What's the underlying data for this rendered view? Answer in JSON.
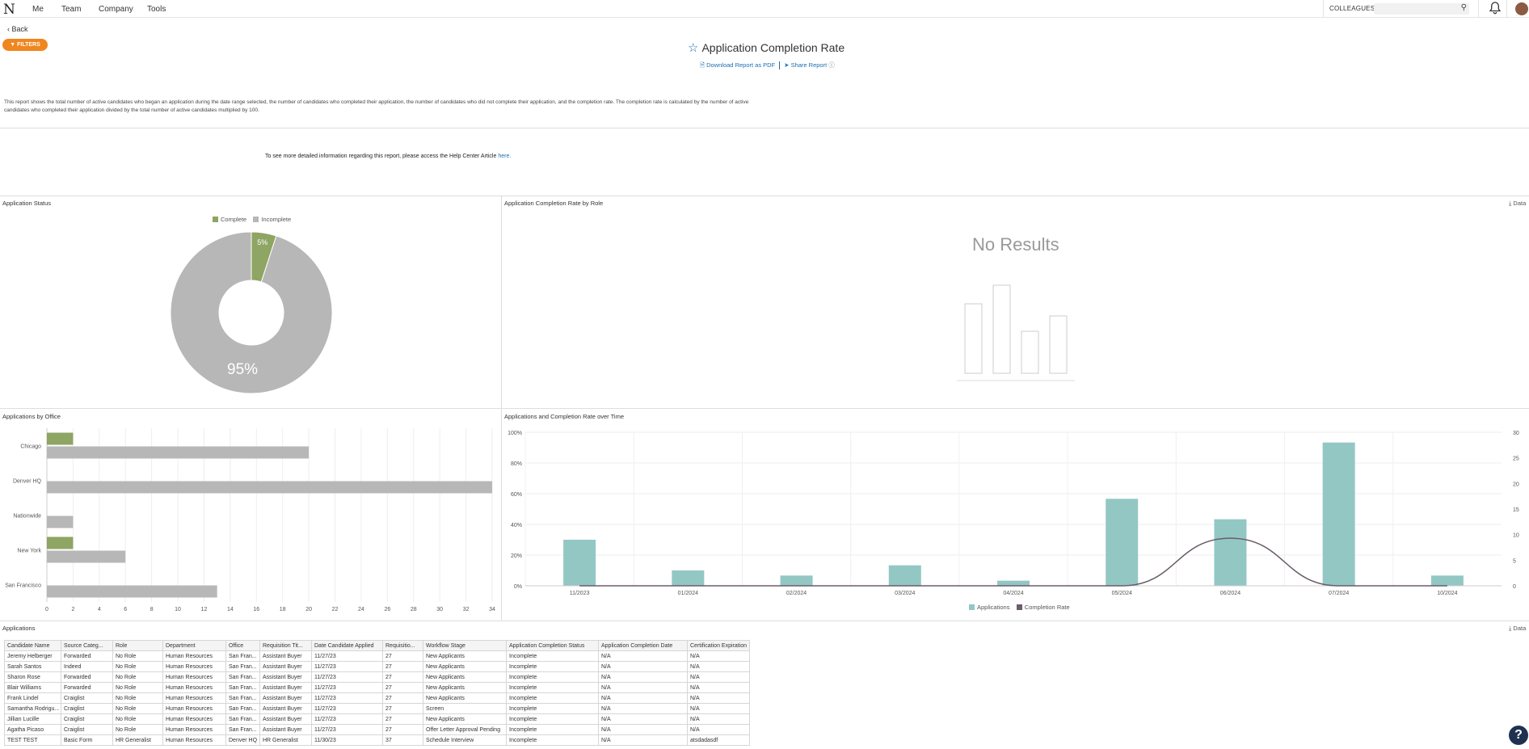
{
  "nav": {
    "logo": "N",
    "items": [
      "Me",
      "Team",
      "Company",
      "Tools"
    ],
    "colleagues_label": "COLLEAGUES ▾",
    "search_placeholder": ""
  },
  "back_label": "Back",
  "filters_label": "FILTERS",
  "page_title": "Application Completion Rate",
  "download_label": "Download Report as PDF",
  "share_label": "Share Report",
  "description": "This report shows the total number of active candidates who began an application during the date range selected, the number of candidates who completed their application, the number of candidates who did not complete their application, and the completion rate. The completion rate is calculated by the number of active candidates who completed their application divided by the total number of active candidates multiplied by 100.",
  "help_text": "To see more detailed information regarding this report, please access the Help Center Article",
  "help_link": "here.",
  "panels": {
    "status_title": "Application Status",
    "role_title": "Application Completion Rate by Role",
    "office_title": "Applications by Office",
    "time_title": "Applications and Completion Rate over Time",
    "data_label": "Data",
    "no_results": "No Results"
  },
  "colors": {
    "complete": "#8ea563",
    "incomplete": "#b7b7b7",
    "applications": "#93c7c4",
    "completion_rate": "#6b5d6b",
    "accent": "#f0861f",
    "link": "#1a6fb0"
  },
  "chart_data": [
    {
      "type": "pie",
      "title": "Application Status",
      "labels": [
        "Complete",
        "Incomplete"
      ],
      "values": [
        5,
        95
      ],
      "value_labels": [
        "5%",
        "95%"
      ],
      "legend_position": "top-center"
    },
    {
      "type": "bar",
      "title": "Applications by Office",
      "orientation": "horizontal",
      "categories": [
        "Chicago",
        "Denver HQ",
        "Nationwide",
        "New York",
        "San Francisco"
      ],
      "series": [
        {
          "name": "Complete",
          "values": [
            2,
            0,
            0,
            2,
            0
          ]
        },
        {
          "name": "Incomplete",
          "values": [
            20,
            34,
            2,
            6,
            13
          ]
        }
      ],
      "xlim": [
        0,
        34
      ],
      "xticks": [
        "0",
        "2",
        "4",
        "6",
        "8",
        "10",
        "12",
        "14",
        "16",
        "18",
        "20",
        "22",
        "24",
        "26",
        "28",
        "30",
        "32",
        "34"
      ],
      "grid": true
    },
    {
      "type": "bar",
      "title": "Applications and Completion Rate over Time",
      "categories": [
        "11/2023",
        "01/2024",
        "02/2024",
        "03/2024",
        "04/2024",
        "05/2024",
        "06/2024",
        "07/2024",
        "10/2024"
      ],
      "series": [
        {
          "name": "Applications",
          "type": "bar",
          "axis": "right",
          "values": [
            9,
            3,
            2,
            4,
            1,
            17,
            13,
            28,
            2
          ]
        },
        {
          "name": "Completion Rate",
          "type": "line",
          "axis": "left",
          "values": [
            0,
            0,
            0,
            0,
            0,
            0,
            31,
            0,
            0
          ]
        }
      ],
      "ylim_left": [
        0,
        100
      ],
      "yticks_left": [
        "0%",
        "20%",
        "40%",
        "60%",
        "80%",
        "100%"
      ],
      "ylim_right": [
        0,
        30
      ],
      "yticks_right": [
        "0",
        "5",
        "10",
        "15",
        "20",
        "25",
        "30"
      ],
      "grid": true,
      "legend_position": "bottom-center"
    }
  ],
  "table": {
    "title": "Applications",
    "columns": [
      "Candidate Name",
      "Source Categ...",
      "Role",
      "Department",
      "Office",
      "Requisition Tit...",
      "Date Candidate Applied",
      "Requisitio...",
      "Workflow Stage",
      "Application Completion Status",
      "Application Completion Date",
      "Certification Expiration"
    ],
    "rows": [
      [
        "Jeremy Helberger",
        "Forwarded",
        "No Role",
        "Human Resources",
        "San Fran...",
        "Assistant Buyer",
        "11/27/23",
        "27",
        "New Applicants",
        "Incomplete",
        "N/A",
        "N/A"
      ],
      [
        "Sarah Santos",
        "Indeed",
        "No Role",
        "Human Resources",
        "San Fran...",
        "Assistant Buyer",
        "11/27/23",
        "27",
        "New Applicants",
        "Incomplete",
        "N/A",
        "N/A"
      ],
      [
        "Sharon Rose",
        "Forwarded",
        "No Role",
        "Human Resources",
        "San Fran...",
        "Assistant Buyer",
        "11/27/23",
        "27",
        "New Applicants",
        "Incomplete",
        "N/A",
        "N/A"
      ],
      [
        "Blair Williams",
        "Forwarded",
        "No Role",
        "Human Resources",
        "San Fran...",
        "Assistant Buyer",
        "11/27/23",
        "27",
        "New Applicants",
        "Incomplete",
        "N/A",
        "N/A"
      ],
      [
        "Frank Lindel",
        "Craiglist",
        "No Role",
        "Human Resources",
        "San Fran...",
        "Assistant Buyer",
        "11/27/23",
        "27",
        "New Applicants",
        "Incomplete",
        "N/A",
        "N/A"
      ],
      [
        "Samantha Rodrigu...",
        "Craiglist",
        "No Role",
        "Human Resources",
        "San Fran...",
        "Assistant Buyer",
        "11/27/23",
        "27",
        "Screen",
        "Incomplete",
        "N/A",
        "N/A"
      ],
      [
        "Jillian Lucille",
        "Craiglist",
        "No Role",
        "Human Resources",
        "San Fran...",
        "Assistant Buyer",
        "11/27/23",
        "27",
        "New Applicants",
        "Incomplete",
        "N/A",
        "N/A"
      ],
      [
        "Agatha Picaso",
        "Craiglist",
        "No Role",
        "Human Resources",
        "San Fran...",
        "Assistant Buyer",
        "11/27/23",
        "27",
        "Offer Letter Approval Pending",
        "Incomplete",
        "N/A",
        "N/A"
      ],
      [
        "TEST TEST",
        "Basic Form",
        "HR Generalist",
        "Human Resources",
        "Denver HQ",
        "HR Generalist",
        "11/30/23",
        "37",
        "Schedule Interview",
        "Incomplete",
        "N/A",
        "atsdadasdf"
      ]
    ]
  },
  "help_button": "?"
}
